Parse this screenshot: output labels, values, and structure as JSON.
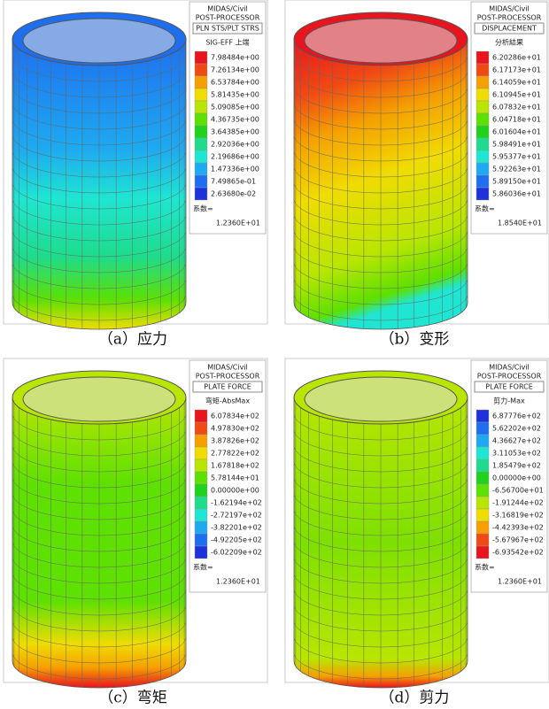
{
  "panels": [
    {
      "caption": "（a）应力",
      "legend": {
        "program": "MIDAS/Civil",
        "processor": "POST-PROCESSOR",
        "result": "PLN STS/PLT STRS",
        "component": "SIG-EFF 上端",
        "values": [
          "7.98484e+00",
          "7.26134e+00",
          "6.53784e+00",
          "5.81435e+00",
          "5.09085e+00",
          "4.36735e+00",
          "3.64385e+00",
          "2.92036e+00",
          "2.19686e+00",
          "1.47336e+00",
          "7.49865e-01",
          "2.63680e-02"
        ],
        "colors": [
          "#e8141e",
          "#f04a14",
          "#f5a000",
          "#f0dc00",
          "#b8e600",
          "#5ee000",
          "#1ed21e",
          "#1edc8c",
          "#1ee6d2",
          "#1eaaf0",
          "#1e6ef0",
          "#1e32dc"
        ],
        "factor_label": "系数=",
        "factor": "1.2360E+01"
      }
    },
    {
      "caption": "（b）变形",
      "legend": {
        "program": "MIDAS/Civil",
        "processor": "POST-PROCESSOR",
        "result": "DISPLACEMENT",
        "component": "分析結果",
        "values": [
          "6.20286e+01",
          "6.17173e+01",
          "6.14059e+01",
          "6.10945e+01",
          "6.07832e+01",
          "6.04718e+01",
          "6.01604e+01",
          "5.98491e+01",
          "5.95377e+01",
          "5.92263e+01",
          "5.89150e+01",
          "5.86036e+01"
        ],
        "colors": [
          "#e8141e",
          "#f04a14",
          "#f5a000",
          "#f0dc00",
          "#b8e600",
          "#5ee000",
          "#1ed21e",
          "#1edc8c",
          "#1ee6d2",
          "#1eaaf0",
          "#1e6ef0",
          "#1e32dc"
        ],
        "factor_label": "系数=",
        "factor": "1.8540E+01"
      }
    },
    {
      "caption": "（c）弯矩",
      "legend": {
        "program": "MIDAS/Civil",
        "processor": "POST-PROCESSOR",
        "result": "PLATE FORCE",
        "component": "弯矩-AbsMax",
        "values": [
          "6.07834e+02",
          "4.97830e+02",
          "3.87826e+02",
          "2.77822e+02",
          "1.67818e+02",
          "5.78144e+01",
          "0.00000e+00",
          "-1.62194e+02",
          "-2.72197e+02",
          "-3.82201e+02",
          "-4.92205e+02",
          "-6.02209e+02"
        ],
        "colors": [
          "#e8141e",
          "#f04a14",
          "#f5a000",
          "#f0dc00",
          "#b8e600",
          "#5ee000",
          "#1ed21e",
          "#1edc8c",
          "#1ee6d2",
          "#1eaaf0",
          "#1e6ef0",
          "#1e32dc"
        ],
        "factor_label": "系数=",
        "factor": "1.2360E+01"
      }
    },
    {
      "caption": "（d）剪力",
      "legend": {
        "program": "MIDAS/Civil",
        "processor": "POST-PROCESSOR",
        "result": "PLATE FORCE",
        "component": "剪力-Max",
        "values": [
          "6.87776e+02",
          "5.62202e+02",
          "4.36627e+02",
          "3.11053e+02",
          "1.85479e+02",
          "0.00000e+00",
          "-6.56700e+01",
          "-1.91244e+02",
          "-3.16819e+02",
          "-4.42393e+02",
          "-5.67967e+02",
          "-6.93542e+02"
        ],
        "colors": [
          "#1e32dc",
          "#1e6ef0",
          "#1eaaf0",
          "#1ee6d2",
          "#1edc8c",
          "#1ed21e",
          "#5ee000",
          "#b8e600",
          "#f0dc00",
          "#f5a000",
          "#f04a14",
          "#e8141e"
        ],
        "factor_label": "系数=",
        "factor": "1.2360E+01"
      }
    }
  ]
}
